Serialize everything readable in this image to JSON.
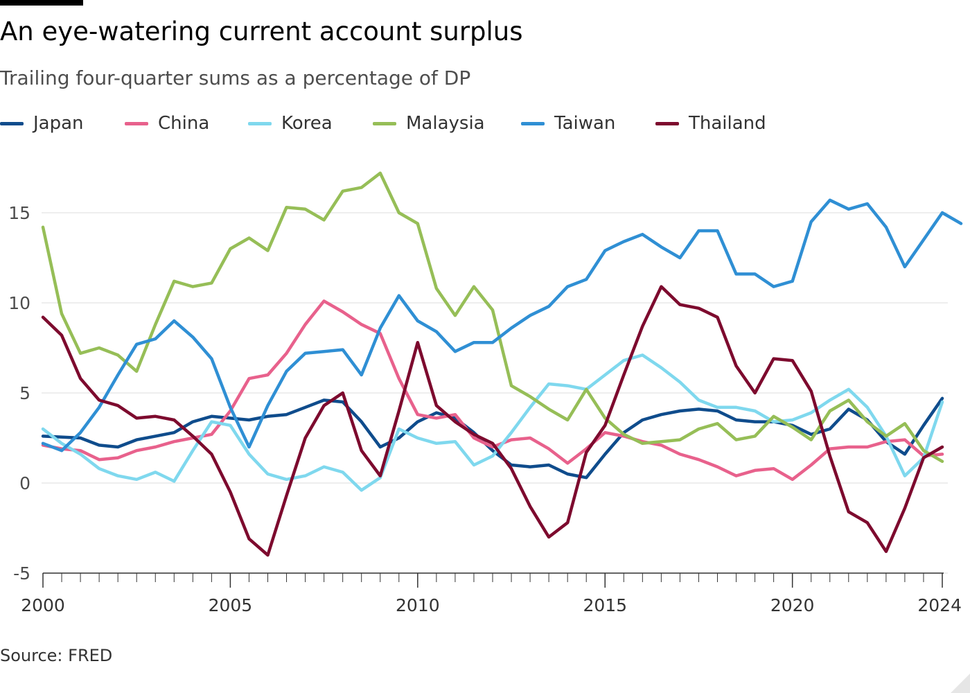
{
  "title": "An eye-watering current account surplus",
  "subtitle": "Trailing four-quarter sums as a percentage of DP",
  "source": "Source: FRED",
  "chart_data": {
    "type": "line",
    "xlim": [
      2000,
      2024
    ],
    "ylim": [
      -5,
      17.5
    ],
    "y_ticks": [
      {
        "value": -5,
        "label": "-5"
      },
      {
        "value": 0,
        "label": "0"
      },
      {
        "value": 5,
        "label": "5"
      },
      {
        "value": 10,
        "label": "10"
      },
      {
        "value": 15,
        "label": "15"
      }
    ],
    "x_ticks": [
      {
        "value": 2000,
        "label": "2000"
      },
      {
        "value": 2005,
        "label": "2005"
      },
      {
        "value": 2010,
        "label": "2010"
      },
      {
        "value": 2015,
        "label": "2015"
      },
      {
        "value": 2020,
        "label": "2020"
      },
      {
        "value": 2024,
        "label": "2024"
      }
    ],
    "grid": "horizontal",
    "legend_position": "top-left",
    "series": [
      {
        "name": "Japan",
        "color": "#0f4c8c",
        "points": [
          [
            2000,
            2.6
          ],
          [
            2001,
            2.5
          ],
          [
            2001.5,
            2.1
          ],
          [
            2002,
            2.0
          ],
          [
            2002.5,
            2.4
          ],
          [
            2003,
            2.6
          ],
          [
            2003.5,
            2.8
          ],
          [
            2004,
            3.4
          ],
          [
            2004.5,
            3.7
          ],
          [
            2005,
            3.6
          ],
          [
            2005.5,
            3.5
          ],
          [
            2006,
            3.7
          ],
          [
            2006.5,
            3.8
          ],
          [
            2007,
            4.2
          ],
          [
            2007.5,
            4.6
          ],
          [
            2008,
            4.5
          ],
          [
            2008.5,
            3.4
          ],
          [
            2009,
            2.0
          ],
          [
            2009.5,
            2.5
          ],
          [
            2010,
            3.4
          ],
          [
            2010.5,
            3.9
          ],
          [
            2011,
            3.6
          ],
          [
            2011.5,
            2.8
          ],
          [
            2012,
            1.8
          ],
          [
            2012.5,
            1.0
          ],
          [
            2013,
            0.9
          ],
          [
            2013.5,
            1.0
          ],
          [
            2014,
            0.5
          ],
          [
            2014.5,
            0.3
          ],
          [
            2015,
            1.6
          ],
          [
            2015.5,
            2.8
          ],
          [
            2016,
            3.5
          ],
          [
            2016.5,
            3.8
          ],
          [
            2017,
            4.0
          ],
          [
            2017.5,
            4.1
          ],
          [
            2018,
            4.0
          ],
          [
            2018.5,
            3.5
          ],
          [
            2019,
            3.4
          ],
          [
            2019.5,
            3.4
          ],
          [
            2020,
            3.2
          ],
          [
            2020.5,
            2.7
          ],
          [
            2021,
            3.0
          ],
          [
            2021.5,
            4.1
          ],
          [
            2022,
            3.5
          ],
          [
            2022.5,
            2.3
          ],
          [
            2023,
            1.6
          ],
          [
            2023.5,
            3.2
          ],
          [
            2024,
            4.7
          ]
        ]
      },
      {
        "name": "China",
        "color": "#e8618c",
        "points": [
          [
            2000,
            2.1
          ],
          [
            2000.5,
            1.9
          ],
          [
            2001,
            1.8
          ],
          [
            2001.5,
            1.3
          ],
          [
            2002,
            1.4
          ],
          [
            2002.5,
            1.8
          ],
          [
            2003,
            2.0
          ],
          [
            2003.5,
            2.3
          ],
          [
            2004,
            2.5
          ],
          [
            2004.5,
            2.7
          ],
          [
            2005,
            4.0
          ],
          [
            2005.5,
            5.8
          ],
          [
            2006,
            6.0
          ],
          [
            2006.5,
            7.2
          ],
          [
            2007,
            8.8
          ],
          [
            2007.5,
            10.1
          ],
          [
            2008,
            9.5
          ],
          [
            2008.5,
            8.8
          ],
          [
            2009,
            8.3
          ],
          [
            2009.5,
            5.8
          ],
          [
            2010,
            3.8
          ],
          [
            2010.5,
            3.6
          ],
          [
            2011,
            3.8
          ],
          [
            2011.5,
            2.5
          ],
          [
            2012,
            2.0
          ],
          [
            2012.5,
            2.4
          ],
          [
            2013,
            2.5
          ],
          [
            2013.5,
            1.9
          ],
          [
            2014,
            1.1
          ],
          [
            2014.5,
            1.9
          ],
          [
            2015,
            2.8
          ],
          [
            2015.5,
            2.6
          ],
          [
            2016,
            2.3
          ],
          [
            2016.5,
            2.1
          ],
          [
            2017,
            1.6
          ],
          [
            2017.5,
            1.3
          ],
          [
            2018,
            0.9
          ],
          [
            2018.5,
            0.4
          ],
          [
            2019,
            0.7
          ],
          [
            2019.5,
            0.8
          ],
          [
            2020,
            0.2
          ],
          [
            2020.5,
            1.0
          ],
          [
            2021,
            1.9
          ],
          [
            2021.5,
            2.0
          ],
          [
            2022,
            2.0
          ],
          [
            2022.5,
            2.3
          ],
          [
            2023,
            2.4
          ],
          [
            2023.5,
            1.5
          ],
          [
            2024,
            1.6
          ]
        ]
      },
      {
        "name": "Korea",
        "color": "#7fd8ee",
        "points": [
          [
            2000,
            3.0
          ],
          [
            2000.5,
            2.2
          ],
          [
            2001,
            1.6
          ],
          [
            2001.5,
            0.8
          ],
          [
            2002,
            0.4
          ],
          [
            2002.5,
            0.2
          ],
          [
            2003,
            0.6
          ],
          [
            2003.5,
            0.1
          ],
          [
            2004,
            1.8
          ],
          [
            2004.5,
            3.4
          ],
          [
            2005,
            3.2
          ],
          [
            2005.5,
            1.6
          ],
          [
            2006,
            0.5
          ],
          [
            2006.5,
            0.2
          ],
          [
            2007,
            0.4
          ],
          [
            2007.5,
            0.9
          ],
          [
            2008,
            0.6
          ],
          [
            2008.5,
            -0.4
          ],
          [
            2009,
            0.3
          ],
          [
            2009.5,
            3.0
          ],
          [
            2010,
            2.5
          ],
          [
            2010.5,
            2.2
          ],
          [
            2011,
            2.3
          ],
          [
            2011.5,
            1.0
          ],
          [
            2012,
            1.5
          ],
          [
            2012.5,
            2.8
          ],
          [
            2013,
            4.2
          ],
          [
            2013.5,
            5.5
          ],
          [
            2014,
            5.4
          ],
          [
            2014.5,
            5.2
          ],
          [
            2015,
            6.0
          ],
          [
            2015.5,
            6.8
          ],
          [
            2016,
            7.1
          ],
          [
            2016.5,
            6.4
          ],
          [
            2017,
            5.6
          ],
          [
            2017.5,
            4.6
          ],
          [
            2018,
            4.2
          ],
          [
            2018.5,
            4.2
          ],
          [
            2019,
            4.0
          ],
          [
            2019.5,
            3.4
          ],
          [
            2020,
            3.5
          ],
          [
            2020.5,
            3.9
          ],
          [
            2021,
            4.6
          ],
          [
            2021.5,
            5.2
          ],
          [
            2022,
            4.2
          ],
          [
            2022.5,
            2.6
          ],
          [
            2023,
            0.4
          ],
          [
            2023.5,
            1.4
          ],
          [
            2024,
            4.5
          ]
        ]
      },
      {
        "name": "Malaysia",
        "color": "#96be57",
        "points": [
          [
            2000,
            14.2
          ],
          [
            2000.5,
            9.4
          ],
          [
            2001,
            7.2
          ],
          [
            2001.5,
            7.5
          ],
          [
            2002,
            7.1
          ],
          [
            2002.5,
            6.2
          ],
          [
            2003,
            8.8
          ],
          [
            2003.5,
            11.2
          ],
          [
            2004,
            10.9
          ],
          [
            2004.5,
            11.1
          ],
          [
            2005,
            13.0
          ],
          [
            2005.5,
            13.6
          ],
          [
            2006,
            12.9
          ],
          [
            2006.5,
            15.3
          ],
          [
            2007,
            15.2
          ],
          [
            2007.5,
            14.6
          ],
          [
            2008,
            16.2
          ],
          [
            2008.5,
            16.4
          ],
          [
            2009,
            17.2
          ],
          [
            2009.5,
            15.0
          ],
          [
            2010,
            14.4
          ],
          [
            2010.5,
            10.8
          ],
          [
            2011,
            9.3
          ],
          [
            2011.5,
            10.9
          ],
          [
            2012,
            9.6
          ],
          [
            2012.5,
            5.4
          ],
          [
            2013,
            4.8
          ],
          [
            2013.5,
            4.1
          ],
          [
            2014,
            3.5
          ],
          [
            2014.5,
            5.2
          ],
          [
            2015,
            3.6
          ],
          [
            2015.5,
            2.7
          ],
          [
            2016,
            2.2
          ],
          [
            2016.5,
            2.3
          ],
          [
            2017,
            2.4
          ],
          [
            2017.5,
            3.0
          ],
          [
            2018,
            3.3
          ],
          [
            2018.5,
            2.4
          ],
          [
            2019,
            2.6
          ],
          [
            2019.5,
            3.7
          ],
          [
            2020,
            3.1
          ],
          [
            2020.5,
            2.4
          ],
          [
            2021,
            4.0
          ],
          [
            2021.5,
            4.6
          ],
          [
            2022,
            3.4
          ],
          [
            2022.5,
            2.6
          ],
          [
            2023,
            3.3
          ],
          [
            2023.5,
            1.8
          ],
          [
            2024,
            1.2
          ]
        ]
      },
      {
        "name": "Taiwan",
        "color": "#2f8fd4",
        "points": [
          [
            2000,
            2.2
          ],
          [
            2000.5,
            1.8
          ],
          [
            2001,
            2.8
          ],
          [
            2001.5,
            4.2
          ],
          [
            2002,
            6.0
          ],
          [
            2002.5,
            7.7
          ],
          [
            2003,
            8.0
          ],
          [
            2003.5,
            9.0
          ],
          [
            2004,
            8.1
          ],
          [
            2004.5,
            6.9
          ],
          [
            2005,
            4.2
          ],
          [
            2005.5,
            2.0
          ],
          [
            2006,
            4.3
          ],
          [
            2006.5,
            6.2
          ],
          [
            2007,
            7.2
          ],
          [
            2007.5,
            7.3
          ],
          [
            2008,
            7.4
          ],
          [
            2008.5,
            6.0
          ],
          [
            2009,
            8.6
          ],
          [
            2009.5,
            10.4
          ],
          [
            2010,
            9.0
          ],
          [
            2010.5,
            8.4
          ],
          [
            2011,
            7.3
          ],
          [
            2011.5,
            7.8
          ],
          [
            2012,
            7.8
          ],
          [
            2012.5,
            8.6
          ],
          [
            2013,
            9.3
          ],
          [
            2013.5,
            9.8
          ],
          [
            2014,
            10.9
          ],
          [
            2014.5,
            11.3
          ],
          [
            2015,
            12.9
          ],
          [
            2015.5,
            13.4
          ],
          [
            2016,
            13.8
          ],
          [
            2016.5,
            13.1
          ],
          [
            2017,
            12.5
          ],
          [
            2017.5,
            14.0
          ],
          [
            2018,
            14.0
          ],
          [
            2018.5,
            11.6
          ],
          [
            2019,
            11.6
          ],
          [
            2019.5,
            10.9
          ],
          [
            2020,
            11.2
          ],
          [
            2020.5,
            14.5
          ],
          [
            2021,
            15.7
          ],
          [
            2021.5,
            15.2
          ],
          [
            2022,
            15.5
          ],
          [
            2022.5,
            14.2
          ],
          [
            2023,
            12.0
          ],
          [
            2023.5,
            13.5
          ],
          [
            2024,
            15.0
          ],
          [
            2024.5,
            14.4
          ]
        ]
      },
      {
        "name": "Thailand",
        "color": "#7d0a2e",
        "points": [
          [
            2000,
            9.2
          ],
          [
            2000.5,
            8.2
          ],
          [
            2001,
            5.8
          ],
          [
            2001.5,
            4.6
          ],
          [
            2002,
            4.3
          ],
          [
            2002.5,
            3.6
          ],
          [
            2003,
            3.7
          ],
          [
            2003.5,
            3.5
          ],
          [
            2004,
            2.6
          ],
          [
            2004.5,
            1.6
          ],
          [
            2005,
            -0.5
          ],
          [
            2005.5,
            -3.1
          ],
          [
            2006,
            -4.0
          ],
          [
            2006.5,
            -0.7
          ],
          [
            2007,
            2.5
          ],
          [
            2007.5,
            4.3
          ],
          [
            2008,
            5.0
          ],
          [
            2008.5,
            1.8
          ],
          [
            2009,
            0.4
          ],
          [
            2009.5,
            4.0
          ],
          [
            2010,
            7.8
          ],
          [
            2010.5,
            4.3
          ],
          [
            2011,
            3.4
          ],
          [
            2011.5,
            2.7
          ],
          [
            2012,
            2.2
          ],
          [
            2012.5,
            0.8
          ],
          [
            2013,
            -1.3
          ],
          [
            2013.5,
            -3.0
          ],
          [
            2014,
            -2.2
          ],
          [
            2014.5,
            1.7
          ],
          [
            2015,
            3.2
          ],
          [
            2015.5,
            6.0
          ],
          [
            2016,
            8.7
          ],
          [
            2016.5,
            10.9
          ],
          [
            2017,
            9.9
          ],
          [
            2017.5,
            9.7
          ],
          [
            2018,
            9.2
          ],
          [
            2018.5,
            6.5
          ],
          [
            2019,
            5.0
          ],
          [
            2019.5,
            6.9
          ],
          [
            2020,
            6.8
          ],
          [
            2020.5,
            5.1
          ],
          [
            2021,
            1.5
          ],
          [
            2021.5,
            -1.6
          ],
          [
            2022,
            -2.2
          ],
          [
            2022.5,
            -3.8
          ],
          [
            2023,
            -1.4
          ],
          [
            2023.5,
            1.4
          ],
          [
            2024,
            2.0
          ]
        ]
      }
    ]
  }
}
